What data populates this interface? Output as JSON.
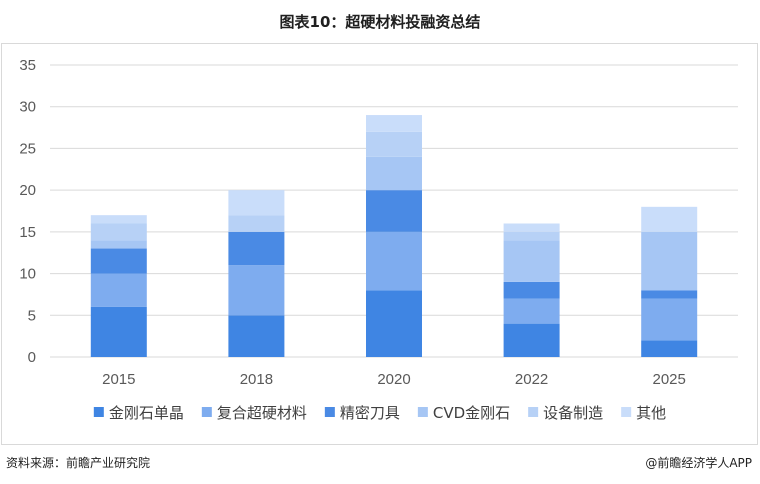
{
  "header": {
    "title": "图表10：超硬材料投融资总结"
  },
  "footer": {
    "source": "资料来源：前瞻产业研究院",
    "brand": "@前瞻经济学人APP"
  },
  "chart_data": {
    "type": "bar",
    "stacked": true,
    "title": "图表10：超硬材料投融资总结",
    "xlabel": "",
    "ylabel": "",
    "categories": [
      "2015",
      "2018",
      "2020",
      "2022",
      "2025"
    ],
    "ylim": [
      0,
      35
    ],
    "yticks": [
      0,
      5,
      10,
      15,
      20,
      25,
      30,
      35
    ],
    "grid": true,
    "legend": "bottom",
    "series": [
      {
        "name": "金刚石单晶",
        "color": "#3f85e3",
        "values": [
          6,
          5,
          8,
          4,
          2
        ]
      },
      {
        "name": "复合超硬材料",
        "color": "#7eacef",
        "values": [
          4,
          6,
          7,
          3,
          5
        ]
      },
      {
        "name": "精密刀具",
        "color": "#4a8ae4",
        "values": [
          3,
          4,
          5,
          2,
          1
        ]
      },
      {
        "name": "CVD金刚石",
        "color": "#a6c6f4",
        "values": [
          1,
          0,
          4,
          5,
          7
        ]
      },
      {
        "name": "设备制造",
        "color": "#b7d1f6",
        "values": [
          2,
          2,
          3,
          1,
          0
        ]
      },
      {
        "name": "其他",
        "color": "#c9ddfa",
        "values": [
          1,
          3,
          2,
          1,
          3
        ]
      }
    ]
  }
}
